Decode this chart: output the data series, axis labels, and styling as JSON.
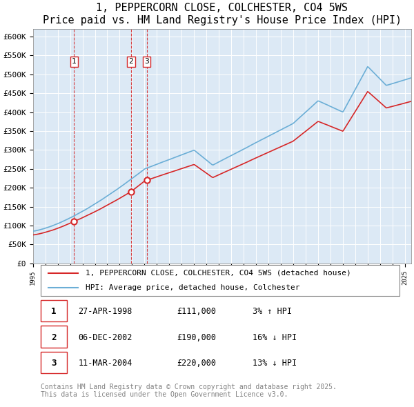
{
  "title": "1, PEPPERCORN CLOSE, COLCHESTER, CO4 5WS",
  "subtitle": "Price paid vs. HM Land Registry's House Price Index (HPI)",
  "ylabel": "",
  "ylim": [
    0,
    620000
  ],
  "yticks": [
    0,
    50000,
    100000,
    150000,
    200000,
    250000,
    300000,
    350000,
    400000,
    450000,
    500000,
    550000,
    600000
  ],
  "ytick_labels": [
    "£0",
    "£50K",
    "£100K",
    "£150K",
    "£200K",
    "£250K",
    "£300K",
    "£350K",
    "£400K",
    "£450K",
    "£500K",
    "£550K",
    "£600K"
  ],
  "hpi_color": "#6baed6",
  "property_color": "#d62728",
  "vline_color": "#d62728",
  "background_color": "#dce9f5",
  "plot_bg_color": "#dce9f5",
  "sale_dates": [
    1998.32,
    2002.92,
    2004.19
  ],
  "sale_prices": [
    111000,
    190000,
    220000
  ],
  "sale_labels": [
    "1",
    "2",
    "3"
  ],
  "legend_property": "1, PEPPERCORN CLOSE, COLCHESTER, CO4 5WS (detached house)",
  "legend_hpi": "HPI: Average price, detached house, Colchester",
  "table_data": [
    [
      "1",
      "27-APR-1998",
      "£111,000",
      "3% ↑ HPI"
    ],
    [
      "2",
      "06-DEC-2002",
      "£190,000",
      "16% ↓ HPI"
    ],
    [
      "3",
      "11-MAR-2004",
      "£220,000",
      "13% ↓ HPI"
    ]
  ],
  "footnote": "Contains HM Land Registry data © Crown copyright and database right 2025.\nThis data is licensed under the Open Government Licence v3.0.",
  "title_fontsize": 11,
  "subtitle_fontsize": 10,
  "tick_fontsize": 8,
  "legend_fontsize": 8,
  "table_fontsize": 8,
  "footnote_fontsize": 7
}
